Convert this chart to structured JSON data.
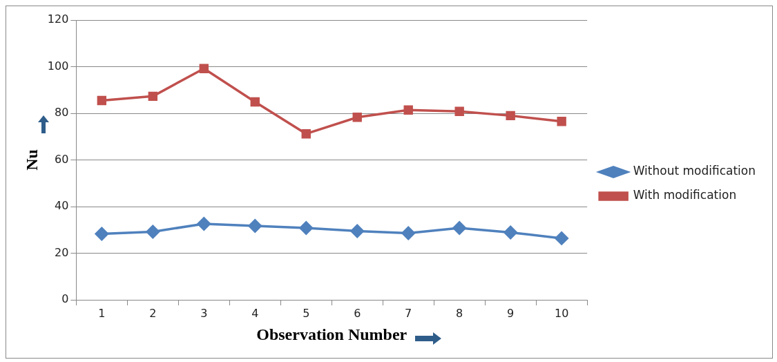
{
  "chart_data": {
    "type": "line",
    "xlabel": "Observation Number",
    "ylabel": "Nu",
    "categories": [
      "1",
      "2",
      "3",
      "4",
      "5",
      "6",
      "7",
      "8",
      "9",
      "10"
    ],
    "series": [
      {
        "name": "Without modification",
        "color": "#4f81bd",
        "marker": "diamond",
        "values": [
          28.3,
          29.2,
          32.6,
          31.7,
          30.8,
          29.5,
          28.6,
          30.8,
          28.9,
          26.4
        ]
      },
      {
        "name": "With modification",
        "color": "#c0504d",
        "marker": "square",
        "values": [
          85.5,
          87.3,
          99.2,
          84.9,
          71.2,
          78.3,
          81.4,
          80.8,
          79,
          76.5
        ]
      }
    ],
    "ylim": [
      0,
      120
    ],
    "yticks": [
      0,
      20,
      40,
      60,
      80,
      100,
      120
    ],
    "grid": "y",
    "legend": "right",
    "line_style": "solid"
  }
}
